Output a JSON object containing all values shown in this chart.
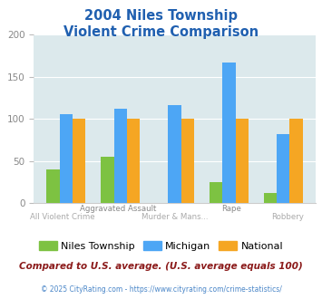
{
  "title_line1": "2004 Niles Township",
  "title_line2": "Violent Crime Comparison",
  "niles": [
    40,
    55,
    0,
    25,
    12
  ],
  "michigan": [
    106,
    112,
    116,
    167,
    82
  ],
  "national": [
    100,
    100,
    100,
    100,
    100
  ],
  "niles_color": "#7dc242",
  "michigan_color": "#4da6f5",
  "national_color": "#f5a623",
  "ylim": [
    0,
    200
  ],
  "yticks": [
    0,
    50,
    100,
    150,
    200
  ],
  "plot_bg": "#dce9ec",
  "title_color": "#2060b0",
  "footer_text": "© 2025 CityRating.com - https://www.cityrating.com/crime-statistics/",
  "subtitle_text": "Compared to U.S. average. (U.S. average equals 100)",
  "subtitle_color": "#8b1a1a",
  "footer_color": "#4a86c8",
  "row1_labels": [
    "",
    "Aggravated Assault",
    "",
    "Rape",
    ""
  ],
  "row2_labels": [
    "All Violent Crime",
    "",
    "Murder & Mans...",
    "",
    "Robbery"
  ],
  "label_color_row1": "#888888",
  "label_color_row2": "#aaaaaa"
}
